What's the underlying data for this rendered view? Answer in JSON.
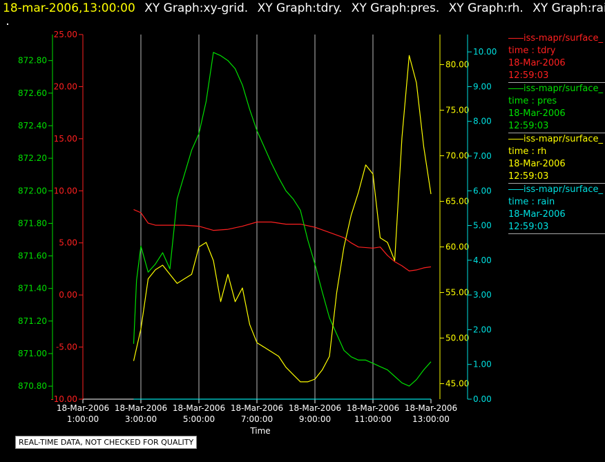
{
  "header": {
    "datetime": "18-mar-2006,13:00:00",
    "graphs": [
      "XY Graph:xy-grid.",
      "XY Graph:tdry.",
      "XY Graph:pres.",
      "XY Graph:rh.",
      "XY Graph:rain"
    ]
  },
  "notice": "REAL-TIME DATA, NOT CHECKED FOR QUALITY",
  "colors": {
    "tdry": "#ff2020",
    "pres": "#00e000",
    "rh": "#ffff00",
    "rain": "#00e0e0",
    "grid": "#bbbbbb",
    "axis": "#ffffff"
  },
  "legend": [
    {
      "name": "iss-mapr/surface_",
      "var": "time : tdry",
      "date": "18-Mar-2006",
      "time": "12:59:03",
      "color": "#ff2020"
    },
    {
      "name": "iss-mapr/surface_",
      "var": "time : pres",
      "date": "18-Mar-2006",
      "time": "12:59:03",
      "color": "#00e000"
    },
    {
      "name": "iss-mapr/surface_",
      "var": "time : rh",
      "date": "18-Mar-2006",
      "time": "12:59:03",
      "color": "#ffff00"
    },
    {
      "name": "iss-mapr/surface_",
      "var": "time : rain",
      "date": "18-Mar-2006",
      "time": "12:59:03",
      "color": "#00e0e0"
    }
  ],
  "chart_data": {
    "type": "line",
    "xlabel": "Time",
    "x_ticks": [
      {
        "date": "18-Mar-2006",
        "time": "1:00:00",
        "hour": 1
      },
      {
        "date": "18-Mar-2006",
        "time": "3:00:00",
        "hour": 3
      },
      {
        "date": "18-Mar-2006",
        "time": "5:00:00",
        "hour": 5
      },
      {
        "date": "18-Mar-2006",
        "time": "7:00:00",
        "hour": 7
      },
      {
        "date": "18-Mar-2006",
        "time": "9:00:00",
        "hour": 9
      },
      {
        "date": "18-Mar-2006",
        "time": "11:00:00",
        "hour": 11
      },
      {
        "date": "18-Mar-2006",
        "time": "13:00:00",
        "hour": 13
      }
    ],
    "xlim_hours": [
      1,
      13
    ],
    "grid_hours": [
      3,
      5,
      7,
      9,
      11
    ],
    "axes": {
      "pres": {
        "ylim": [
          870.72,
          872.96
        ],
        "ticks": [
          "870.80",
          "871.00",
          "871.20",
          "871.40",
          "871.60",
          "871.80",
          "872.00",
          "872.20",
          "872.40",
          "872.60",
          "872.80"
        ]
      },
      "tdry": {
        "ylim": [
          -10,
          25
        ],
        "ticks": [
          "-10.00",
          "-5.00",
          "0.00",
          "5.00",
          "10.00",
          "15.00",
          "20.00",
          "25.00"
        ]
      },
      "rh": {
        "ylim": [
          43.3,
          83.3
        ],
        "ticks": [
          "45.00",
          "50.00",
          "55.00",
          "60.00",
          "65.00",
          "70.00",
          "75.00",
          "80.00"
        ]
      },
      "rain": {
        "ylim": [
          0,
          10.5
        ],
        "ticks": [
          "0.00",
          "1.00",
          "2.00",
          "3.00",
          "4.00",
          "5.00",
          "6.00",
          "7.00",
          "8.00",
          "9.00",
          "10.00"
        ]
      }
    },
    "series": [
      {
        "name": "tdry",
        "axis": "tdry",
        "x": [
          2.75,
          3.0,
          3.25,
          3.5,
          4.0,
          4.5,
          5.0,
          5.5,
          6.0,
          6.5,
          7.0,
          7.5,
          8.0,
          8.5,
          9.0,
          9.5,
          10.0,
          10.25,
          10.5,
          11.0,
          11.25,
          11.5,
          11.75,
          12.0,
          12.25,
          12.5,
          12.75,
          13.0
        ],
        "y": [
          8.2,
          7.9,
          6.9,
          6.7,
          6.7,
          6.7,
          6.6,
          6.2,
          6.3,
          6.6,
          7.0,
          7.0,
          6.8,
          6.8,
          6.5,
          6.0,
          5.5,
          5.0,
          4.6,
          4.5,
          4.6,
          3.8,
          3.2,
          2.8,
          2.3,
          2.4,
          2.6,
          2.7
        ]
      },
      {
        "name": "pres",
        "axis": "pres",
        "x": [
          2.75,
          2.85,
          3.0,
          3.25,
          3.5,
          3.75,
          4.0,
          4.25,
          4.5,
          4.75,
          5.0,
          5.25,
          5.5,
          5.75,
          6.0,
          6.25,
          6.5,
          6.75,
          7.0,
          7.25,
          7.5,
          7.75,
          8.0,
          8.25,
          8.5,
          8.75,
          9.0,
          9.25,
          9.5,
          9.75,
          10.0,
          10.25,
          10.5,
          10.75,
          11.0,
          11.25,
          11.5,
          11.75,
          12.0,
          12.25,
          12.5,
          12.75,
          13.0
        ],
        "y": [
          871.06,
          871.45,
          871.66,
          871.5,
          871.55,
          871.62,
          871.52,
          871.95,
          872.1,
          872.25,
          872.35,
          872.55,
          872.85,
          872.83,
          872.8,
          872.75,
          872.65,
          872.5,
          872.37,
          872.27,
          872.17,
          872.08,
          872.0,
          871.95,
          871.88,
          871.7,
          871.55,
          871.38,
          871.22,
          871.12,
          871.02,
          870.98,
          870.96,
          870.96,
          870.94,
          870.92,
          870.9,
          870.86,
          870.82,
          870.8,
          870.84,
          870.9,
          870.95
        ]
      },
      {
        "name": "rh",
        "axis": "rh",
        "x": [
          2.75,
          3.0,
          3.25,
          3.5,
          3.75,
          4.0,
          4.25,
          4.5,
          4.75,
          5.0,
          5.25,
          5.5,
          5.75,
          6.0,
          6.25,
          6.5,
          6.75,
          7.0,
          7.25,
          7.5,
          7.75,
          8.0,
          8.25,
          8.5,
          8.75,
          9.0,
          9.25,
          9.5,
          9.75,
          10.0,
          10.25,
          10.5,
          10.75,
          11.0,
          11.25,
          11.5,
          11.75,
          12.0,
          12.25,
          12.5,
          12.75,
          13.0
        ],
        "y": [
          47.5,
          51.0,
          56.5,
          57.5,
          58.0,
          57.0,
          56.0,
          56.5,
          57.0,
          60.0,
          60.5,
          58.5,
          54.0,
          57.0,
          54.0,
          55.5,
          51.5,
          49.5,
          49.0,
          48.5,
          48.0,
          46.8,
          46.0,
          45.2,
          45.2,
          45.5,
          46.5,
          48.0,
          55.0,
          60.0,
          63.5,
          66.0,
          69.0,
          68.0,
          61.0,
          60.5,
          58.5,
          72.0,
          81.0,
          78.0,
          71.0,
          65.8
        ]
      },
      {
        "name": "rain",
        "axis": "rain",
        "x": [
          2.75,
          13.0
        ],
        "y": [
          0.0,
          0.0
        ]
      }
    ]
  }
}
